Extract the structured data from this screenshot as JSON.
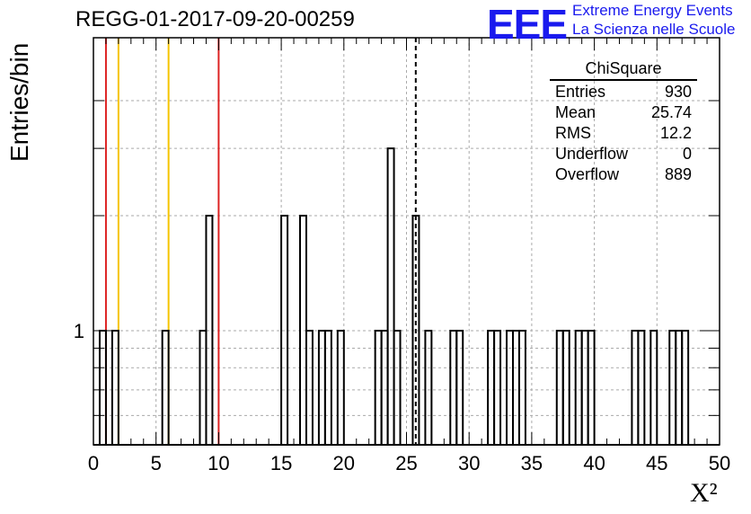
{
  "chart_data": {
    "type": "histogram",
    "title": "REGG-01-2017-09-20-00259",
    "xlabel": "X²",
    "ylabel": "Entries/bin",
    "xlim": [
      0,
      50
    ],
    "ylog": true,
    "grid": true,
    "bin_width": 0.5,
    "x_ticks": [
      "0",
      "5",
      "10",
      "15",
      "20",
      "25",
      "30",
      "35",
      "40",
      "45",
      "50"
    ],
    "y_tick_label": "1",
    "bins": [
      {
        "x": 0.5,
        "count": 1
      },
      {
        "x": 1.5,
        "count": 1
      },
      {
        "x": 5.5,
        "count": 1
      },
      {
        "x": 8.5,
        "count": 1
      },
      {
        "x": 9.0,
        "count": 2
      },
      {
        "x": 15.0,
        "count": 2
      },
      {
        "x": 16.5,
        "count": 2
      },
      {
        "x": 17.0,
        "count": 1
      },
      {
        "x": 18.0,
        "count": 1
      },
      {
        "x": 18.5,
        "count": 1
      },
      {
        "x": 19.5,
        "count": 1
      },
      {
        "x": 22.5,
        "count": 1
      },
      {
        "x": 23.0,
        "count": 1
      },
      {
        "x": 23.5,
        "count": 3
      },
      {
        "x": 24.0,
        "count": 1
      },
      {
        "x": 25.5,
        "count": 2
      },
      {
        "x": 26.5,
        "count": 1
      },
      {
        "x": 28.5,
        "count": 1
      },
      {
        "x": 29.0,
        "count": 1
      },
      {
        "x": 31.5,
        "count": 1
      },
      {
        "x": 32.0,
        "count": 1
      },
      {
        "x": 33.0,
        "count": 1
      },
      {
        "x": 33.5,
        "count": 1
      },
      {
        "x": 34.0,
        "count": 1
      },
      {
        "x": 37.0,
        "count": 1
      },
      {
        "x": 37.5,
        "count": 1
      },
      {
        "x": 38.5,
        "count": 1
      },
      {
        "x": 39.0,
        "count": 1
      },
      {
        "x": 39.5,
        "count": 1
      },
      {
        "x": 43.0,
        "count": 1
      },
      {
        "x": 43.5,
        "count": 1
      },
      {
        "x": 44.5,
        "count": 1
      },
      {
        "x": 46.0,
        "count": 1
      },
      {
        "x": 46.5,
        "count": 1
      },
      {
        "x": 47.0,
        "count": 1
      }
    ],
    "vertical_lines": [
      {
        "x": 1.0,
        "color": "#dd2222",
        "style": "solid"
      },
      {
        "x": 2.0,
        "color": "#f5c400",
        "style": "solid"
      },
      {
        "x": 6.0,
        "color": "#f5c400",
        "style": "solid"
      },
      {
        "x": 10.0,
        "color": "#dd2222",
        "style": "solid"
      },
      {
        "x": 25.74,
        "color": "#000000",
        "style": "dashed"
      }
    ],
    "stats": {
      "title": "ChiSquare",
      "rows": [
        {
          "label": "Entries",
          "value": "930"
        },
        {
          "label": "Mean",
          "value": "25.74"
        },
        {
          "label": "RMS",
          "value": "12.2"
        },
        {
          "label": "Underflow",
          "value": "0"
        },
        {
          "label": "Overflow",
          "value": "889"
        }
      ]
    }
  },
  "logo": {
    "mark": "EEE",
    "line1": "Extreme Energy Events",
    "line2": "La Scienza nelle Scuole"
  }
}
